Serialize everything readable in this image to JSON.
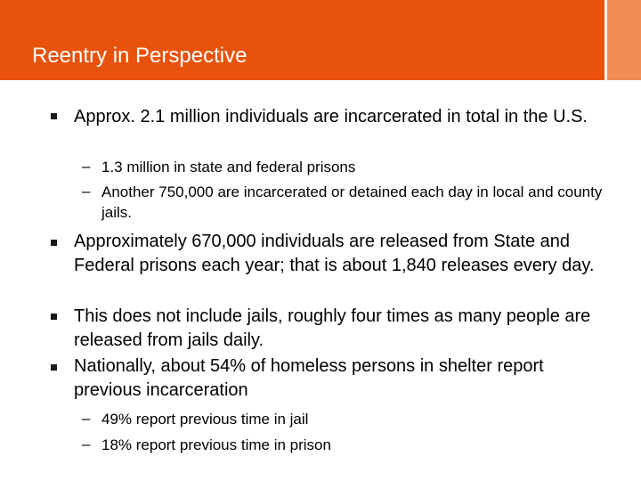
{
  "slide": {
    "title": "Reentry in Perspective",
    "colors": {
      "header_main": "#e8520a",
      "header_accent": "#f08c54",
      "title_text": "#ffffff",
      "body_text": "#000000"
    },
    "bullets": [
      {
        "text": "Approx. 2.1 million individuals are incarcerated in total in the U.S.",
        "subitems": [
          "1.3 million in state and federal prisons",
          "Another 750,000 are incarcerated or detained each day in local and county jails."
        ]
      },
      {
        "text": "Approximately 670,000 individuals are released from State and Federal prisons each year; that is about 1,840 releases every day.",
        "subitems": []
      },
      {
        "text": "This does not include jails, roughly four times as many people are released from jails daily.",
        "subitems": []
      },
      {
        "text": "Nationally, about 54% of homeless persons in shelter report previous incarceration",
        "subitems": [
          "49% report previous time in jail",
          "18% report previous time in prison"
        ]
      }
    ],
    "dash_glyph": "–"
  }
}
